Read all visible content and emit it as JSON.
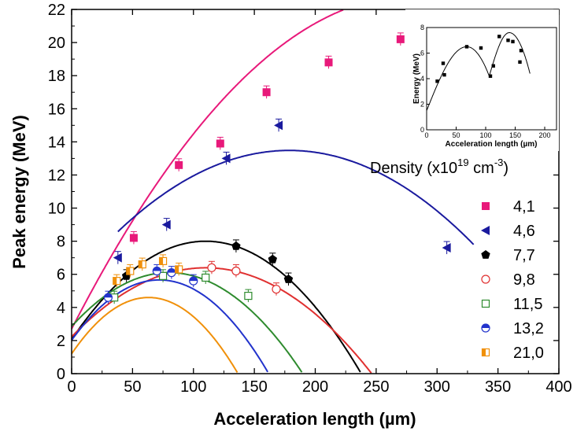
{
  "chart_data": {
    "type": "scatter",
    "xlabel": "Acceleration length (µm)",
    "ylabel": "Peak energy (MeV)",
    "xlim": [
      0,
      400
    ],
    "ylim": [
      0,
      22
    ],
    "xticks": [
      "0",
      "50",
      "100",
      "150",
      "200",
      "250",
      "300",
      "350",
      "400"
    ],
    "yticks": [
      "0",
      "2",
      "4",
      "6",
      "8",
      "10",
      "12",
      "14",
      "16",
      "18",
      "20",
      "22"
    ],
    "legend_title_prefix": "Density (x10",
    "legend_title_exp1": "19",
    "legend_title_mid": " cm",
    "legend_title_exp2": "-3",
    "legend_title_suffix": ")",
    "series": [
      {
        "name": "4,1",
        "color": "#e8197a",
        "marker": "square-filled",
        "points": [
          [
            51,
            8.2
          ],
          [
            88,
            12.6
          ],
          [
            122,
            13.9
          ],
          [
            160,
            17.0
          ],
          [
            211,
            18.8
          ],
          [
            270,
            20.2
          ]
        ],
        "fit": [
          -0.000255,
          0.1433,
          2.7
        ]
      },
      {
        "name": "4,6",
        "color": "#1a1a9e",
        "marker": "triangle-left",
        "points": [
          [
            38,
            7.0
          ],
          [
            78,
            9.0
          ],
          [
            127,
            13.0
          ],
          [
            170,
            15.0
          ],
          [
            308,
            7.6
          ]
        ],
        "fit": [
          -0.000248,
          0.0886,
          5.57
        ],
        "fit_range": [
          38,
          330
        ]
      },
      {
        "name": "7,7",
        "color": "#000000",
        "marker": "pentagon-filled",
        "points": [
          [
            45,
            5.9
          ],
          [
            135,
            7.7
          ],
          [
            165,
            6.9
          ],
          [
            178,
            5.7
          ]
        ],
        "fit": [
          -0.00049,
          0.1078,
          2.07
        ]
      },
      {
        "name": "9,8",
        "color": "#e03030",
        "marker": "circle-open",
        "points": [
          [
            115,
            6.4
          ],
          [
            135,
            6.2
          ],
          [
            168,
            5.1
          ]
        ],
        "fit": [
          -0.000344,
          0.0757,
          2.23
        ]
      },
      {
        "name": "11,5",
        "color": "#2e8b2e",
        "marker": "square-open",
        "points": [
          [
            35,
            4.6
          ],
          [
            75,
            5.9
          ],
          [
            110,
            5.8
          ],
          [
            145,
            4.7
          ]
        ],
        "fit": [
          -0.000507,
          0.0812,
          2.85
        ]
      },
      {
        "name": "13,2",
        "color": "#2233cc",
        "marker": "circle-half",
        "points": [
          [
            30,
            4.6
          ],
          [
            70,
            6.2
          ],
          [
            82,
            6.1
          ],
          [
            100,
            5.6
          ]
        ],
        "fit": [
          -0.000702,
          0.1011,
          2.02
        ]
      },
      {
        "name": "21,0",
        "color": "#f0900a",
        "marker": "square-half",
        "points": [
          [
            37,
            5.6
          ],
          [
            48,
            6.2
          ],
          [
            58,
            6.6
          ],
          [
            75,
            6.8
          ],
          [
            88,
            6.3
          ]
        ],
        "fit": [
          -0.000853,
          0.1077,
          1.2
        ]
      }
    ],
    "inset": {
      "xlabel": "Acceleration length (µm)",
      "ylabel": "Energy (MeV)",
      "xlim": [
        0,
        220
      ],
      "ylim": [
        0,
        8
      ],
      "xticks": [
        "0",
        "50",
        "100",
        "150",
        "200"
      ],
      "yticks": [
        "0",
        "2",
        "4",
        "6",
        "8"
      ],
      "points": [
        [
          18,
          3.8
        ],
        [
          28,
          5.2
        ],
        [
          30,
          4.3
        ],
        [
          68,
          6.5
        ],
        [
          92,
          6.4
        ],
        [
          108,
          4.2
        ],
        [
          113,
          5.0
        ],
        [
          123,
          7.3
        ],
        [
          138,
          7.0
        ],
        [
          146,
          6.9
        ],
        [
          160,
          6.2
        ],
        [
          158,
          5.3
        ]
      ]
    }
  }
}
